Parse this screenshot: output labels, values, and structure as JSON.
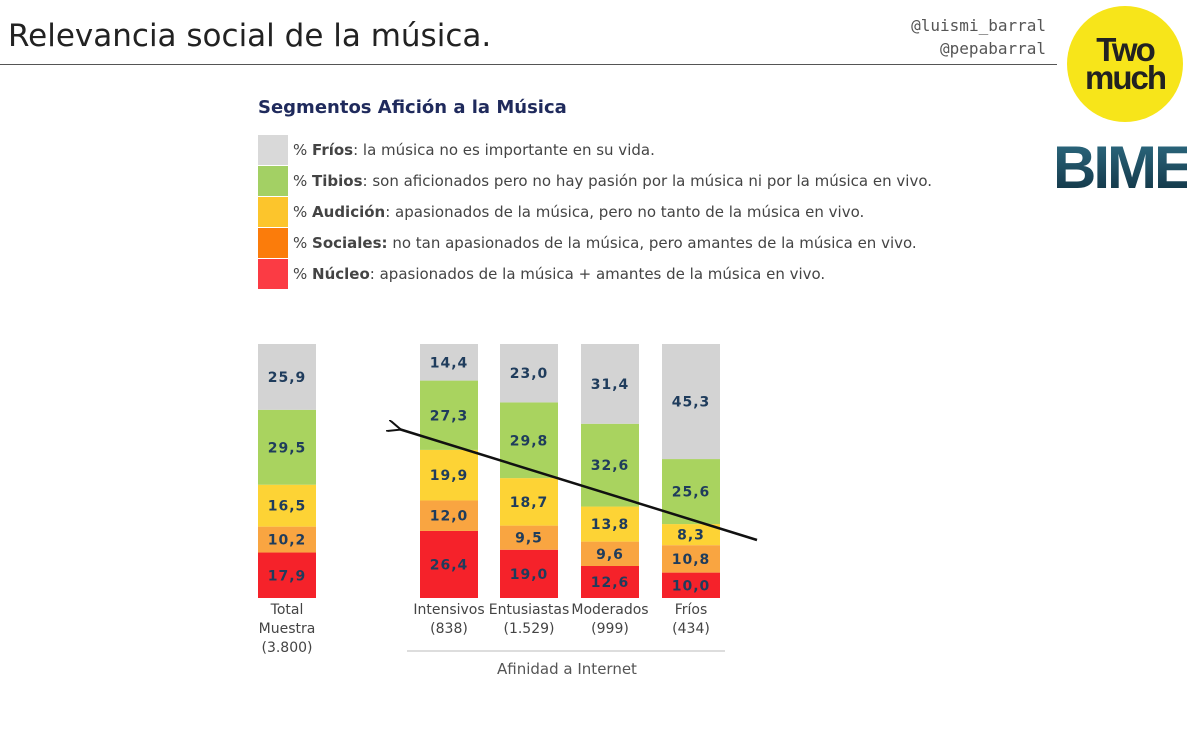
{
  "header": {
    "title": "Relevancia social de la música.",
    "handles": [
      "@luismi_barral",
      "@pepabarral"
    ]
  },
  "logos": {
    "twomuch_lines": [
      "Two",
      "much"
    ],
    "bime": "BIME"
  },
  "legend": {
    "title": "Segmentos Afición a la Música",
    "items": [
      {
        "prefix": "% ",
        "name": "Fríos",
        "desc": ": la música no es importante en su vida.",
        "color": "#d9d9d9"
      },
      {
        "prefix": "% ",
        "name": "Tibios",
        "desc": ": son aficionados pero no hay pasión por la música ni por la música en vivo.",
        "color": "#a3d064"
      },
      {
        "prefix": "% ",
        "name": "Audición",
        "desc": ": apasionados de la música, pero no tanto de la música en vivo.",
        "color": "#fcc52c"
      },
      {
        "prefix": "% ",
        "name": "Sociales:",
        "desc": " no tan apasionados de la música, pero amantes de la música en vivo.",
        "color": "#fb7c0b"
      },
      {
        "prefix": "% ",
        "name": "Núcleo",
        "desc": ": apasionados de la música + amantes de la música en vivo.",
        "color": "#fb3b44"
      }
    ]
  },
  "chart_data": {
    "type": "bar",
    "stacked": true,
    "categories": [
      {
        "label": [
          "Total",
          "Muestra",
          "(3.800)"
        ]
      },
      {
        "label": [
          "Intensivos",
          "(838)"
        ]
      },
      {
        "label": [
          "Entusiastas",
          "(1.529)"
        ]
      },
      {
        "label": [
          "Moderados",
          "(999)"
        ]
      },
      {
        "label": [
          "Fríos",
          "(434)"
        ]
      }
    ],
    "series": [
      {
        "name": "Núcleo",
        "color": "#f5222a",
        "values": [
          17.9,
          26.4,
          19.0,
          12.6,
          10.0
        ],
        "labels": [
          "17,9",
          "26,4",
          "19,0",
          "12,6",
          "10,0"
        ]
      },
      {
        "name": "Sociales",
        "color": "#f9a541",
        "values": [
          10.2,
          12.0,
          9.5,
          9.6,
          10.8
        ],
        "labels": [
          "10,2",
          "12,0",
          "9,5",
          "9,6",
          "10,8"
        ]
      },
      {
        "name": "Audición",
        "color": "#fdd335",
        "values": [
          16.5,
          19.9,
          18.7,
          13.8,
          8.3
        ],
        "labels": [
          "16,5",
          "19,9",
          "18,7",
          "13,8",
          "8,3"
        ]
      },
      {
        "name": "Tibios",
        "color": "#a9d35f",
        "values": [
          29.5,
          27.3,
          29.8,
          32.6,
          25.6
        ],
        "labels": [
          "29,5",
          "27,3",
          "29,8",
          "32,6",
          "25,6"
        ]
      },
      {
        "name": "Fríos",
        "color": "#d3d3d3",
        "values": [
          25.9,
          14.4,
          23.0,
          31.4,
          45.3
        ],
        "labels": [
          "25,9",
          "14,4",
          "23,0",
          "31,4",
          "45,3"
        ]
      }
    ],
    "group_label": "Afinidad a Internet",
    "ylim": [
      0,
      100
    ]
  }
}
